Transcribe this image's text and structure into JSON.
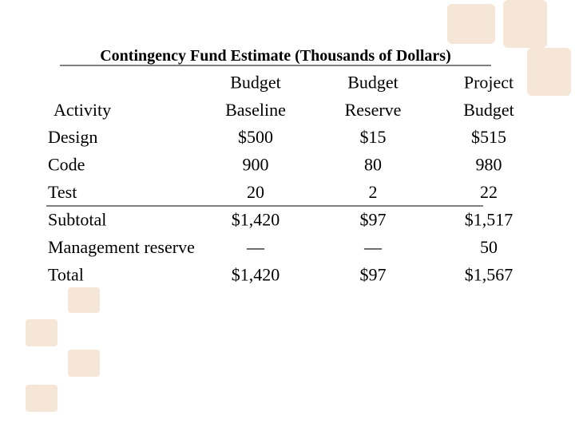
{
  "title": "Contingency Fund Estimate (Thousands of Dollars)",
  "table": {
    "columns": [
      [
        "Activity"
      ],
      [
        "Budget",
        "Baseline"
      ],
      [
        "Budget",
        "Reserve"
      ],
      [
        "Project",
        "Budget"
      ]
    ],
    "rows": [
      [
        "Design",
        "$500",
        "$15",
        "$515"
      ],
      [
        "Code",
        "900",
        "80",
        "980"
      ],
      [
        "Test",
        "20",
        "2",
        "22"
      ],
      [
        "Subtotal",
        "$1,420",
        "$97",
        "$1,517"
      ],
      [
        "Management reserve",
        "—",
        "—",
        "50"
      ],
      [
        "Total",
        "$1,420",
        "$97",
        "$1,567"
      ]
    ]
  }
}
